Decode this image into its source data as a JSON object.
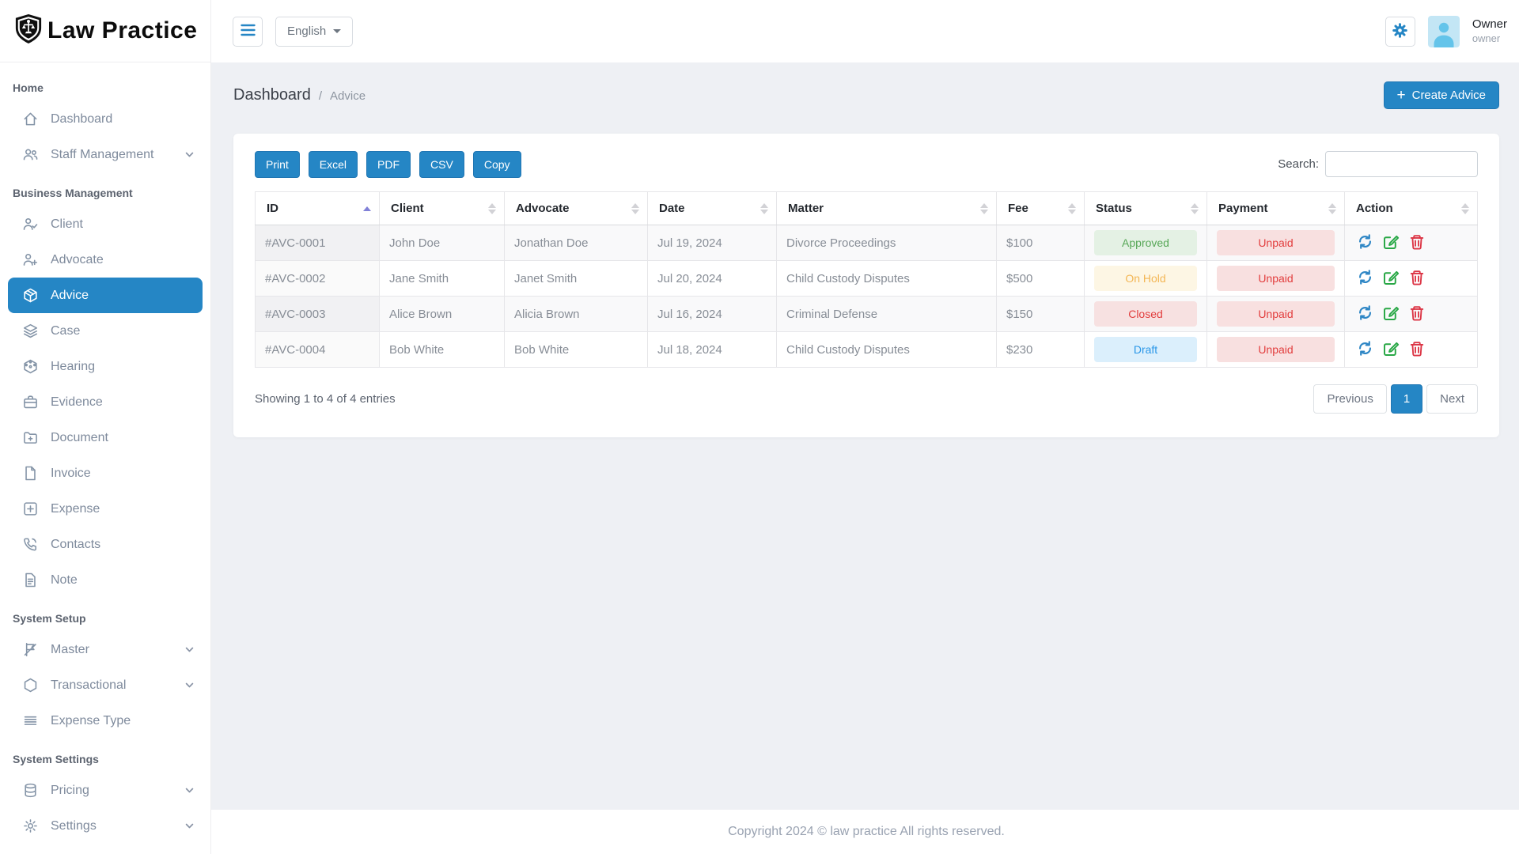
{
  "colors": {
    "accent": "#2586c5",
    "status_approved": "#57a757",
    "status_approved_bg": "#e4f1e4",
    "status_onhold": "#f3b655",
    "status_onhold_bg": "#fdf6e4",
    "status_closed": "#e23d3d",
    "status_closed_bg": "#f7e1e1",
    "status_draft": "#2a97e8",
    "status_draft_bg": "#dbeffc",
    "payment_unpaid": "#e23d3d",
    "payment_unpaid_bg": "#f8e0e0"
  },
  "sidebar": {
    "logo": "Law Practice",
    "sections": [
      {
        "label": "Home",
        "items": [
          {
            "label": "Dashboard",
            "icon": "home",
            "expandable": false,
            "active": false
          },
          {
            "label": "Staff Management",
            "icon": "users",
            "expandable": true,
            "active": false
          }
        ]
      },
      {
        "label": "Business Management",
        "items": [
          {
            "label": "Client",
            "icon": "user-check",
            "expandable": false,
            "active": false
          },
          {
            "label": "Advocate",
            "icon": "user-plus",
            "expandable": false,
            "active": false
          },
          {
            "label": "Advice",
            "icon": "box",
            "expandable": false,
            "active": true
          },
          {
            "label": "Case",
            "icon": "layers",
            "expandable": false,
            "active": false
          },
          {
            "label": "Hearing",
            "icon": "box-3d",
            "expandable": false,
            "active": false
          },
          {
            "label": "Evidence",
            "icon": "briefcase",
            "expandable": false,
            "active": false
          },
          {
            "label": "Document",
            "icon": "folder-plus",
            "expandable": false,
            "active": false
          },
          {
            "label": "Invoice",
            "icon": "file",
            "expandable": false,
            "active": false
          },
          {
            "label": "Expense",
            "icon": "plus-square",
            "expandable": false,
            "active": false
          },
          {
            "label": "Contacts",
            "icon": "phone",
            "expandable": false,
            "active": false
          },
          {
            "label": "Note",
            "icon": "file-text",
            "expandable": false,
            "active": false
          }
        ]
      },
      {
        "label": "System Setup",
        "items": [
          {
            "label": "Master",
            "icon": "flag",
            "expandable": true,
            "active": false
          },
          {
            "label": "Transactional",
            "icon": "hexagon",
            "expandable": true,
            "active": false
          },
          {
            "label": "Expense Type",
            "icon": "list",
            "expandable": false,
            "active": false
          }
        ]
      },
      {
        "label": "System Settings",
        "items": [
          {
            "label": "Pricing",
            "icon": "database",
            "expandable": true,
            "active": false
          },
          {
            "label": "Settings",
            "icon": "gear",
            "expandable": true,
            "active": false
          }
        ]
      }
    ]
  },
  "topbar": {
    "language": "English",
    "user_name": "Owner",
    "user_role": "owner"
  },
  "content": {
    "breadcrumb": {
      "root": "Dashboard",
      "separator": "/",
      "current": "Advice"
    },
    "create_button": "Create Advice",
    "export_buttons": [
      "Print",
      "Excel",
      "PDF",
      "CSV",
      "Copy"
    ],
    "search_label": "Search:",
    "search_value": "",
    "table": {
      "columns": [
        {
          "label": "ID",
          "sorted": true
        },
        {
          "label": "Client",
          "sorted": false
        },
        {
          "label": "Advocate",
          "sorted": false
        },
        {
          "label": "Date",
          "sorted": false
        },
        {
          "label": "Matter",
          "sorted": false
        },
        {
          "label": "Fee",
          "sorted": false
        },
        {
          "label": "Status",
          "sorted": false
        },
        {
          "label": "Payment",
          "sorted": false
        },
        {
          "label": "Action",
          "sorted": false
        }
      ],
      "rows": [
        {
          "id": "#AVC-0001",
          "client": "John Doe",
          "advocate": "Jonathan Doe",
          "date": "Jul 19, 2024",
          "matter": "Divorce Proceedings",
          "fee": "$100",
          "status": "Approved",
          "status_key": "approved",
          "payment": "Unpaid",
          "payment_key": "unpaid"
        },
        {
          "id": "#AVC-0002",
          "client": "Jane Smith",
          "advocate": "Janet Smith",
          "date": "Jul 20, 2024",
          "matter": "Child Custody Disputes",
          "fee": "$500",
          "status": "On Hold",
          "status_key": "onhold",
          "payment": "Unpaid",
          "payment_key": "unpaid"
        },
        {
          "id": "#AVC-0003",
          "client": "Alice Brown",
          "advocate": "Alicia Brown",
          "date": "Jul 16, 2024",
          "matter": "Criminal Defense",
          "fee": "$150",
          "status": "Closed",
          "status_key": "closed",
          "payment": "Unpaid",
          "payment_key": "unpaid"
        },
        {
          "id": "#AVC-0004",
          "client": "Bob White",
          "advocate": "Bob White",
          "date": "Jul 18, 2024",
          "matter": "Child Custody Disputes",
          "fee": "$230",
          "status": "Draft",
          "status_key": "draft",
          "payment": "Unpaid",
          "payment_key": "unpaid"
        }
      ],
      "actions": [
        "refresh",
        "edit",
        "delete"
      ]
    },
    "entries_info": "Showing 1 to 4 of 4 entries",
    "pagination": {
      "previous": "Previous",
      "current_page": "1",
      "next": "Next"
    }
  },
  "footer": {
    "text": "Copyright 2024 © law practice All rights reserved."
  }
}
